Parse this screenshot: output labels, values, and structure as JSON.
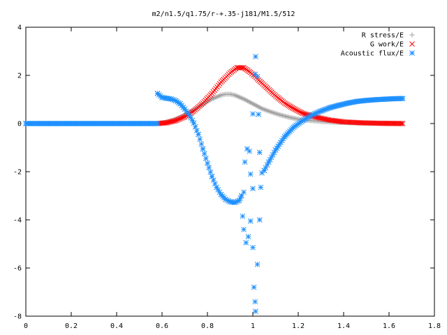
{
  "chart_data": {
    "type": "scatter",
    "title": "m2/n1.5/q1.75/r-+.35-j181/M1.5/512",
    "xlabel": "",
    "ylabel": "",
    "xlim": [
      0,
      1.8
    ],
    "ylim": [
      -8,
      4
    ],
    "xticks": [
      "0",
      "0.2",
      "0.4",
      "0.6",
      "0.8",
      "1",
      "1.2",
      "1.4",
      "1.6",
      "1.8"
    ],
    "yticks": [
      "4",
      "2",
      "0",
      "-2",
      "-4",
      "-6",
      "-8"
    ],
    "grid": false,
    "legend_position": "top-right",
    "series": [
      {
        "name": "R stress/E",
        "marker": "plus",
        "color": "#a0a0a0",
        "points": [
          [
            0.58,
            0.0
          ],
          [
            0.62,
            0.06
          ],
          [
            0.66,
            0.18
          ],
          [
            0.7,
            0.35
          ],
          [
            0.74,
            0.56
          ],
          [
            0.78,
            0.8
          ],
          [
            0.82,
            1.02
          ],
          [
            0.86,
            1.18
          ],
          [
            0.88,
            1.22
          ],
          [
            0.9,
            1.22
          ],
          [
            0.92,
            1.18
          ],
          [
            0.96,
            1.02
          ],
          [
            1.0,
            0.82
          ],
          [
            1.04,
            0.62
          ],
          [
            1.08,
            0.48
          ],
          [
            1.12,
            0.36
          ],
          [
            1.16,
            0.26
          ],
          [
            1.2,
            0.18
          ],
          [
            1.26,
            0.12
          ],
          [
            1.32,
            0.07
          ],
          [
            1.4,
            0.04
          ],
          [
            1.48,
            0.02
          ],
          [
            1.56,
            0.01
          ],
          [
            1.66,
            0.0
          ]
        ]
      },
      {
        "name": "G work/E",
        "marker": "cross",
        "color": "#ff0000",
        "points": [
          [
            0.58,
            0.0
          ],
          [
            0.62,
            0.03
          ],
          [
            0.66,
            0.12
          ],
          [
            0.7,
            0.28
          ],
          [
            0.74,
            0.52
          ],
          [
            0.78,
            0.85
          ],
          [
            0.82,
            1.25
          ],
          [
            0.86,
            1.72
          ],
          [
            0.9,
            2.1
          ],
          [
            0.93,
            2.32
          ],
          [
            0.96,
            2.32
          ],
          [
            0.99,
            2.12
          ],
          [
            1.02,
            1.85
          ],
          [
            1.06,
            1.5
          ],
          [
            1.1,
            1.15
          ],
          [
            1.14,
            0.85
          ],
          [
            1.18,
            0.62
          ],
          [
            1.22,
            0.42
          ],
          [
            1.28,
            0.26
          ],
          [
            1.34,
            0.14
          ],
          [
            1.4,
            0.07
          ],
          [
            1.48,
            0.03
          ],
          [
            1.56,
            0.01
          ],
          [
            1.66,
            0.0
          ]
        ]
      },
      {
        "name": "Acoustic flux/E",
        "marker": "star",
        "color": "#1e90ff",
        "points": [
          [
            0.58,
            1.25
          ],
          [
            0.6,
            1.08
          ],
          [
            0.62,
            1.05
          ],
          [
            0.64,
            1.02
          ],
          [
            0.66,
            0.95
          ],
          [
            0.68,
            0.82
          ],
          [
            0.7,
            0.6
          ],
          [
            0.72,
            0.35
          ],
          [
            0.74,
            0.02
          ],
          [
            0.76,
            -0.45
          ],
          [
            0.78,
            -1.05
          ],
          [
            0.8,
            -1.65
          ],
          [
            0.82,
            -2.2
          ],
          [
            0.84,
            -2.65
          ],
          [
            0.86,
            -2.95
          ],
          [
            0.88,
            -3.15
          ],
          [
            0.9,
            -3.25
          ],
          [
            0.92,
            -3.28
          ],
          [
            0.94,
            -3.2
          ],
          [
            0.95,
            -3.0
          ],
          [
            0.96,
            -2.85
          ],
          [
            0.955,
            -3.85
          ],
          [
            0.96,
            -4.4
          ],
          [
            0.97,
            -4.95
          ],
          [
            0.98,
            -4.7
          ],
          [
            0.99,
            -4.05
          ],
          [
            1.0,
            -5.15
          ],
          [
            1.005,
            -6.8
          ],
          [
            1.01,
            -7.4
          ],
          [
            1.012,
            -7.8
          ],
          [
            1.02,
            -5.85
          ],
          [
            1.03,
            -4.0
          ],
          [
            1.035,
            -2.65
          ],
          [
            1.04,
            -2.05
          ],
          [
            1.0,
            -2.7
          ],
          [
            0.99,
            -2.1
          ],
          [
            0.975,
            -1.05
          ],
          [
            0.965,
            -1.6
          ],
          [
            0.985,
            -1.15
          ],
          [
            1.0,
            0.4
          ],
          [
            1.01,
            2.05
          ],
          [
            1.012,
            2.78
          ],
          [
            1.02,
            1.95
          ],
          [
            1.025,
            0.38
          ],
          [
            1.03,
            -1.2
          ],
          [
            1.05,
            -1.95
          ],
          [
            1.07,
            -1.6
          ],
          [
            1.1,
            -1.1
          ],
          [
            1.14,
            -0.55
          ],
          [
            1.18,
            -0.15
          ],
          [
            1.22,
            0.12
          ],
          [
            1.26,
            0.35
          ],
          [
            1.3,
            0.52
          ],
          [
            1.34,
            0.66
          ],
          [
            1.38,
            0.76
          ],
          [
            1.42,
            0.85
          ],
          [
            1.46,
            0.92
          ],
          [
            1.5,
            0.96
          ],
          [
            1.54,
            0.99
          ],
          [
            1.58,
            1.01
          ],
          [
            1.62,
            1.03
          ],
          [
            1.66,
            1.04
          ]
        ]
      },
      {
        "name": "",
        "marker": "star",
        "color": "#1e90ff",
        "points": [
          [
            0.0,
            0.0
          ],
          [
            0.04,
            0.0
          ],
          [
            0.08,
            0.0
          ],
          [
            0.12,
            0.0
          ],
          [
            0.16,
            0.0
          ],
          [
            0.2,
            0.0
          ],
          [
            0.24,
            0.0
          ],
          [
            0.28,
            0.0
          ],
          [
            0.32,
            0.0
          ],
          [
            0.36,
            0.0
          ],
          [
            0.4,
            0.0
          ],
          [
            0.44,
            0.0
          ],
          [
            0.48,
            0.0
          ],
          [
            0.52,
            0.0
          ],
          [
            0.56,
            0.0
          ],
          [
            0.58,
            0.0
          ]
        ]
      }
    ]
  }
}
